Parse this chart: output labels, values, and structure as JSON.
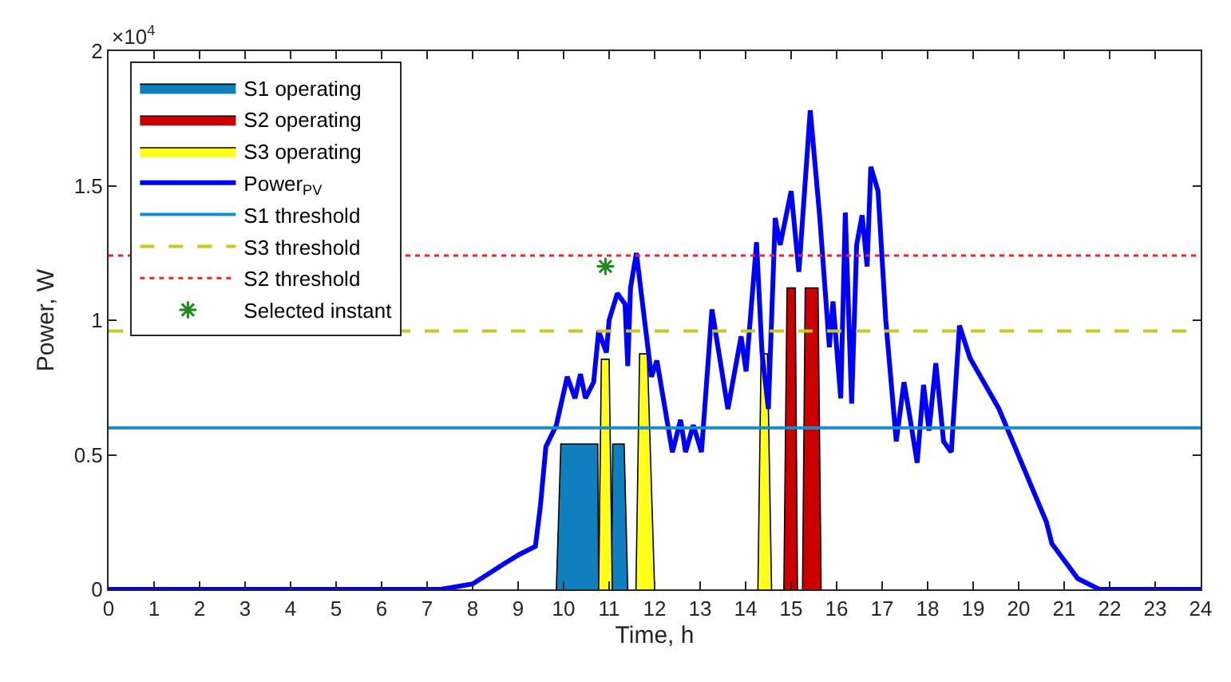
{
  "chart_data": {
    "type": "line",
    "xlabel": "Time, h",
    "ylabel": "Power, W",
    "annotations": [
      "×10$^{4}$"
    ],
    "xlim": [
      0,
      24
    ],
    "xticks": [
      0,
      1,
      2,
      3,
      4,
      5,
      6,
      7,
      8,
      9,
      10,
      11,
      12,
      13,
      14,
      15,
      16,
      17,
      18,
      19,
      20,
      21,
      22,
      23,
      24
    ],
    "ylim": [
      0,
      2
    ],
    "yticks": [
      0,
      0.5,
      1,
      1.5,
      2
    ],
    "legend": "top left",
    "series": [
      {
        "name": "S1 operating",
        "type": "area",
        "color": "#0f7fc0",
        "x": [
          9.84,
          9.94,
          10.75,
          10.77,
          null,
          11.05,
          11.08,
          11.33,
          11.41
        ],
        "values": [
          0,
          0.54,
          0.54,
          0,
          null,
          0,
          0.54,
          0.54,
          0
        ]
      },
      {
        "name": "S2 operating",
        "type": "area",
        "color": "#cc0000",
        "x": [
          14.84,
          14.91,
          15.09,
          15.14,
          null,
          15.25,
          15.31,
          15.59,
          15.66
        ],
        "values": [
          0,
          1.12,
          1.12,
          0,
          null,
          0,
          1.12,
          1.12,
          0
        ]
      },
      {
        "name": "S3 operating",
        "type": "area",
        "color": "#ffff1a",
        "x": [
          10.77,
          10.83,
          11.0,
          11.07,
          null,
          11.59,
          11.67,
          11.84,
          12.0,
          null,
          14.27,
          14.34,
          14.48,
          14.57
        ],
        "values": [
          0,
          0.855,
          0.855,
          0,
          null,
          0,
          0.875,
          0.875,
          0,
          null,
          0,
          0.875,
          0.875,
          0
        ]
      },
      {
        "name": "Power$_{PV}$",
        "color": "#0000ff",
        "line_style": "solid",
        "marker": "none",
        "x": [
          0,
          7.3,
          8.0,
          8.69,
          9.03,
          9.38,
          9.49,
          9.61,
          9.84,
          10.08,
          10.25,
          10.37,
          10.48,
          10.66,
          10.77,
          10.94,
          11.0,
          11.18,
          11.35,
          11.41,
          11.47,
          11.6,
          11.75,
          11.93,
          12.05,
          12.39,
          12.57,
          12.68,
          12.85,
          13.03,
          13.26,
          13.61,
          13.9,
          14.01,
          14.24,
          14.36,
          14.5,
          14.65,
          14.76,
          15.0,
          15.17,
          15.42,
          15.63,
          15.84,
          15.92,
          16.09,
          16.19,
          16.33,
          16.44,
          16.56,
          16.67,
          16.75,
          16.91,
          17.08,
          17.31,
          17.48,
          17.6,
          17.77,
          17.91,
          18.03,
          18.18,
          18.35,
          18.52,
          18.7,
          18.93,
          19.57,
          20.61,
          20.73,
          21.3,
          21.77,
          24
        ],
        "values": [
          0,
          0,
          0.02,
          0.095,
          0.13,
          0.16,
          0.31,
          0.53,
          0.61,
          0.79,
          0.71,
          0.8,
          0.71,
          0.77,
          0.96,
          0.88,
          1.0,
          1.1,
          1.06,
          0.83,
          1.12,
          1.25,
          1.04,
          0.79,
          0.85,
          0.51,
          0.63,
          0.51,
          0.61,
          0.51,
          1.04,
          0.67,
          0.94,
          0.81,
          1.29,
          0.88,
          0.67,
          1.38,
          1.28,
          1.48,
          1.18,
          1.78,
          1.38,
          0.9,
          1.07,
          0.71,
          1.4,
          0.69,
          1.28,
          1.39,
          1.2,
          1.57,
          1.48,
          1.0,
          0.55,
          0.77,
          0.65,
          0.47,
          0.76,
          0.59,
          0.84,
          0.55,
          0.51,
          0.98,
          0.86,
          0.67,
          0.25,
          0.17,
          0.04,
          0,
          0
        ]
      },
      {
        "name": "Selected instant",
        "type": "scatter",
        "color": "#1a8c1a",
        "marker": "cross",
        "x": [
          10.92
        ],
        "values": [
          1.2
        ]
      }
    ],
    "ref_lines": [
      {
        "axis": "y",
        "value": 0.6,
        "label": "S1 threshold",
        "color": "#1a8ccc",
        "line_style": "solid"
      },
      {
        "axis": "y",
        "value": 0.96,
        "label": "S3 threshold",
        "color": "#c8c81e",
        "line_style": "dashed"
      },
      {
        "axis": "y",
        "value": 1.24,
        "label": "S2 threshold",
        "color": "#ff2020",
        "line_style": "dotted"
      }
    ]
  }
}
